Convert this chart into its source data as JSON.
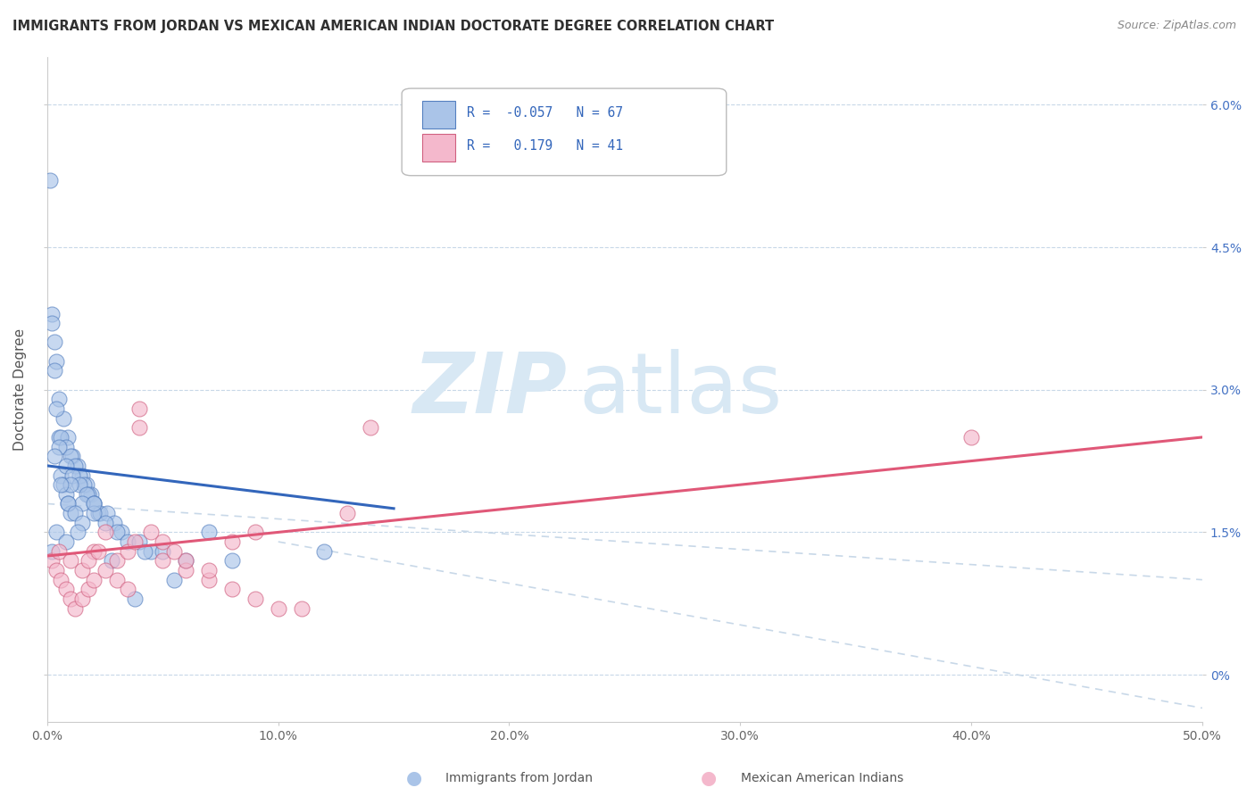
{
  "title": "IMMIGRANTS FROM JORDAN VS MEXICAN AMERICAN INDIAN DOCTORATE DEGREE CORRELATION CHART",
  "source": "Source: ZipAtlas.com",
  "ylabel": "Doctorate Degree",
  "xlim": [
    0,
    50
  ],
  "ylim": [
    -0.5,
    6.5
  ],
  "ytick_positions": [
    0,
    1.5,
    3.0,
    4.5,
    6.0
  ],
  "ytick_labels": [
    "0%",
    "1.5%",
    "3.0%",
    "4.5%",
    "6.0%"
  ],
  "xtick_positions": [
    0,
    10,
    20,
    30,
    40,
    50
  ],
  "xtick_labels": [
    "0.0%",
    "10.0%",
    "20.0%",
    "30.0%",
    "40.0%",
    "50.0%"
  ],
  "series1_name": "Immigrants from Jordan",
  "series1_color": "#aac4e8",
  "series1_R": -0.057,
  "series1_N": 67,
  "series1_edge_color": "#5580c0",
  "series1_line_color": "#3366bb",
  "series2_name": "Mexican American Indians",
  "series2_color": "#f4b8cc",
  "series2_R": 0.179,
  "series2_N": 41,
  "series2_edge_color": "#d06080",
  "series2_line_color": "#e05878",
  "watermark_zip": "ZIP",
  "watermark_atlas": "atlas",
  "watermark_color": "#d8e8f4",
  "background_color": "#ffffff",
  "grid_color": "#c8d8e8",
  "title_color": "#303030",
  "series1_x": [
    0.1,
    0.2,
    0.3,
    0.4,
    0.5,
    0.6,
    0.7,
    0.8,
    0.9,
    1.0,
    0.2,
    0.3,
    0.5,
    0.7,
    0.9,
    1.1,
    1.3,
    1.5,
    1.7,
    1.9,
    0.4,
    0.6,
    0.8,
    1.0,
    1.2,
    1.4,
    1.6,
    1.8,
    2.0,
    2.2,
    0.5,
    0.8,
    1.1,
    1.4,
    1.7,
    2.0,
    2.3,
    2.6,
    2.9,
    3.2,
    1.0,
    1.5,
    2.0,
    2.5,
    3.0,
    3.5,
    4.0,
    4.5,
    5.0,
    6.0,
    0.3,
    0.6,
    0.9,
    1.2,
    1.5,
    0.4,
    0.8,
    7.0,
    12.0,
    2.0,
    0.2,
    1.3,
    2.8,
    4.2,
    8.0,
    5.5,
    3.8
  ],
  "series1_y": [
    5.2,
    3.8,
    3.5,
    3.3,
    2.5,
    2.1,
    2.0,
    1.9,
    1.8,
    1.7,
    3.7,
    3.2,
    2.9,
    2.7,
    2.5,
    2.3,
    2.2,
    2.1,
    2.0,
    1.9,
    2.8,
    2.5,
    2.4,
    2.3,
    2.2,
    2.1,
    2.0,
    1.9,
    1.8,
    1.7,
    2.4,
    2.2,
    2.1,
    2.0,
    1.9,
    1.8,
    1.7,
    1.7,
    1.6,
    1.5,
    2.0,
    1.8,
    1.7,
    1.6,
    1.5,
    1.4,
    1.4,
    1.3,
    1.3,
    1.2,
    2.3,
    2.0,
    1.8,
    1.7,
    1.6,
    1.5,
    1.4,
    1.5,
    1.3,
    1.8,
    1.3,
    1.5,
    1.2,
    1.3,
    1.2,
    1.0,
    0.8
  ],
  "series2_x": [
    0.2,
    0.4,
    0.6,
    0.8,
    1.0,
    1.2,
    1.5,
    1.8,
    2.0,
    2.5,
    3.0,
    3.5,
    4.0,
    5.0,
    6.0,
    7.0,
    8.0,
    9.0,
    10.0,
    11.0,
    0.5,
    1.0,
    1.5,
    2.0,
    3.0,
    4.0,
    5.0,
    6.0,
    7.0,
    2.5,
    3.5,
    4.5,
    14.0,
    9.0,
    13.0,
    40.0,
    8.0,
    1.8,
    2.2,
    3.8,
    5.5
  ],
  "series2_y": [
    1.2,
    1.1,
    1.0,
    0.9,
    0.8,
    0.7,
    0.8,
    0.9,
    1.0,
    1.1,
    1.0,
    0.9,
    2.8,
    1.2,
    1.1,
    1.0,
    0.9,
    0.8,
    0.7,
    0.7,
    1.3,
    1.2,
    1.1,
    1.3,
    1.2,
    2.6,
    1.4,
    1.2,
    1.1,
    1.5,
    1.3,
    1.5,
    2.6,
    1.5,
    1.7,
    2.5,
    1.4,
    1.2,
    1.3,
    1.4,
    1.3
  ],
  "blue_line_x0": 0,
  "blue_line_y0": 2.2,
  "blue_line_x1": 15,
  "blue_line_y1": 1.75,
  "pink_line_x0": 0,
  "pink_line_y0": 1.25,
  "pink_line_x1": 50,
  "pink_line_y1": 2.5,
  "blue_dash_x0": 10,
  "blue_dash_y0": 1.4,
  "blue_dash_x1": 50,
  "blue_dash_y1": -0.35,
  "pink_dash_x0": 0,
  "pink_dash_y0": 1.8,
  "pink_dash_x1": 50,
  "pink_dash_y1": 1.0
}
